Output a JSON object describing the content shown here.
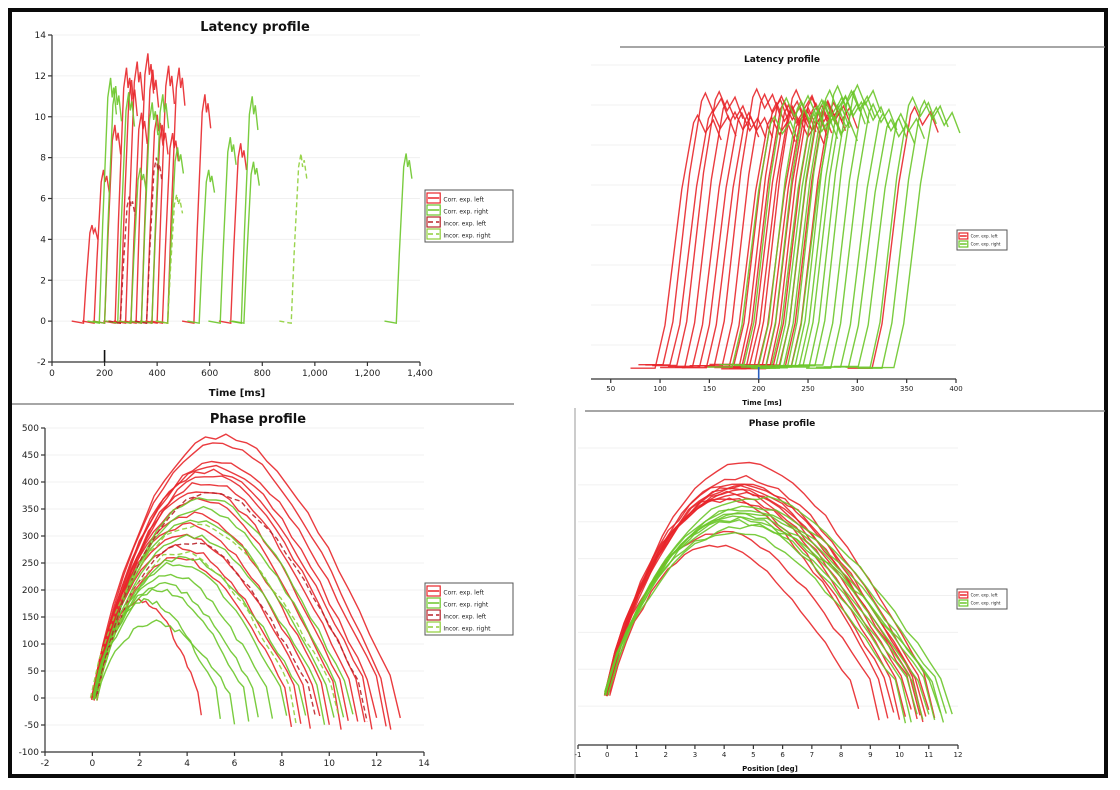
{
  "figure": {
    "colors": {
      "corr_left": "#e8262a",
      "corr_right": "#6cc62a",
      "incor_left": "#b8242a",
      "incor_right": "#8fcf3a",
      "frame": "#0a0a0a"
    }
  },
  "chart_data": [
    {
      "id": "latency_left",
      "type": "line",
      "title": "Latency profile",
      "xlabel": "Time [ms]",
      "ylabel": "",
      "xlim": [
        0,
        1400
      ],
      "ylim": [
        -2,
        14
      ],
      "xticks": [
        "0",
        "200",
        "400",
        "600",
        "800",
        "1,000",
        "1,200",
        "1,400"
      ],
      "xtick_values": [
        0,
        200,
        400,
        600,
        800,
        1000,
        1200,
        1400
      ],
      "yticks": [
        "-2",
        "0",
        "2",
        "4",
        "6",
        "8",
        "10",
        "12",
        "14"
      ],
      "ytick_values": [
        -2,
        0,
        2,
        4,
        6,
        8,
        10,
        12,
        14
      ],
      "marker_at_x": 200,
      "legend": [
        "Corr. exp. left",
        "Corr. exp. right",
        "Incor. exp. left",
        "Incor. exp. right"
      ],
      "legend_position": "right",
      "series": [
        {
          "name": "Corr. exp. left",
          "traces": [
            {
              "onset": 120,
              "peak": 4.7
            },
            {
              "onset": 160,
              "peak": 7.4
            },
            {
              "onset": 200,
              "peak": 9.6
            },
            {
              "onset": 240,
              "peak": 12.4
            },
            {
              "onset": 260,
              "peak": 11.8
            },
            {
              "onset": 280,
              "peak": 12.7
            },
            {
              "onset": 300,
              "peak": 10.2
            },
            {
              "onset": 320,
              "peak": 13.1
            },
            {
              "onset": 340,
              "peak": 12.3
            },
            {
              "onset": 360,
              "peak": 10.1
            },
            {
              "onset": 380,
              "peak": 9.6
            },
            {
              "onset": 400,
              "peak": 12.5
            },
            {
              "onset": 420,
              "peak": 9.2
            },
            {
              "onset": 440,
              "peak": 12.4
            },
            {
              "onset": 540,
              "peak": 11.1
            },
            {
              "onset": 680,
              "peak": 8.7
            }
          ]
        },
        {
          "name": "Corr. exp. right",
          "traces": [
            {
              "onset": 180,
              "peak": 11.9
            },
            {
              "onset": 200,
              "peak": 11.5
            },
            {
              "onset": 250,
              "peak": 11.2
            },
            {
              "onset": 300,
              "peak": 7.5
            },
            {
              "onset": 340,
              "peak": 10.7
            },
            {
              "onset": 380,
              "peak": 11.1
            },
            {
              "onset": 440,
              "peak": 8.5
            },
            {
              "onset": 560,
              "peak": 7.4
            },
            {
              "onset": 640,
              "peak": 9.0
            },
            {
              "onset": 720,
              "peak": 11.0
            },
            {
              "onset": 730,
              "peak": 7.8
            },
            {
              "onset": 1310,
              "peak": 8.2
            }
          ]
        },
        {
          "name": "Incor. exp. left",
          "traces": [
            {
              "onset": 260,
              "peak": 6.1
            },
            {
              "onset": 360,
              "peak": 8.0
            }
          ]
        },
        {
          "name": "Incor. exp. right",
          "traces": [
            {
              "onset": 910,
              "peak": 8.2
            },
            {
              "onset": 440,
              "peak": 6.2
            }
          ]
        }
      ]
    },
    {
      "id": "latency_right",
      "type": "line",
      "title": "Latency profile",
      "xlabel": "Time [ms]",
      "ylabel": "",
      "xlim": [
        30,
        400
      ],
      "ylim": [
        -1,
        13
      ],
      "xticks": [
        "50",
        "100",
        "150",
        "200",
        "250",
        "300",
        "350",
        "400"
      ],
      "xtick_values": [
        50,
        100,
        150,
        200,
        250,
        300,
        350,
        400
      ],
      "marker_at_x": 200,
      "legend": [
        "Corr. exp. left",
        "Corr. exp. right"
      ],
      "legend_position": "right",
      "series": [
        {
          "name": "Corr. exp. left",
          "onsets": [
            100,
            108,
            115,
            122,
            130,
            138,
            145,
            152,
            160,
            168,
            175,
            180,
            185,
            188,
            192,
            196,
            200,
            204,
            208,
            212,
            216,
            220,
            226,
            232,
            238,
            320
          ]
        },
        {
          "name": "Corr. exp. right",
          "onsets": [
            178,
            190,
            205,
            212,
            218,
            222,
            226,
            230,
            234,
            238,
            242,
            246,
            250,
            256,
            262,
            270,
            278,
            288,
            296,
            306,
            318,
            330,
            342
          ]
        }
      ]
    },
    {
      "id": "phase_left",
      "type": "line",
      "title": "Phase profile",
      "xlabel": "",
      "ylabel": "",
      "xlim": [
        -2,
        14
      ],
      "ylim": [
        -100,
        500
      ],
      "xticks": [
        "-2",
        "0",
        "2",
        "4",
        "6",
        "8",
        "10",
        "12",
        "14"
      ],
      "xtick_values": [
        -2,
        0,
        2,
        4,
        6,
        8,
        10,
        12,
        14
      ],
      "yticks": [
        "-100",
        "-50",
        "0",
        "50",
        "100",
        "150",
        "200",
        "250",
        "300",
        "350",
        "400",
        "450",
        "500"
      ],
      "ytick_values": [
        -100,
        -50,
        0,
        50,
        100,
        150,
        200,
        250,
        300,
        350,
        400,
        450,
        500
      ],
      "legend": [
        "Corr. exp. left",
        "Corr. exp. right",
        "Incor. exp. left",
        "Incor. exp. right"
      ],
      "legend_position": "right",
      "series": [
        {
          "name": "Corr. exp. left",
          "arcs": [
            {
              "end": 13.0,
              "peak": 485
            },
            {
              "end": 12.6,
              "peak": 470
            },
            {
              "end": 12.4,
              "peak": 440
            },
            {
              "end": 12.0,
              "peak": 430
            },
            {
              "end": 11.8,
              "peak": 420
            },
            {
              "end": 11.5,
              "peak": 410
            },
            {
              "end": 11.2,
              "peak": 400
            },
            {
              "end": 10.8,
              "peak": 385
            },
            {
              "end": 10.5,
              "peak": 370
            },
            {
              "end": 10.0,
              "peak": 340
            },
            {
              "end": 9.6,
              "peak": 320
            },
            {
              "end": 9.2,
              "peak": 300
            },
            {
              "end": 8.8,
              "peak": 280
            },
            {
              "end": 8.4,
              "peak": 260
            },
            {
              "end": 4.6,
              "peak": 180
            }
          ]
        },
        {
          "name": "Corr. exp. right",
          "arcs": [
            {
              "end": 11.0,
              "peak": 370
            },
            {
              "end": 10.6,
              "peak": 350
            },
            {
              "end": 10.2,
              "peak": 330
            },
            {
              "end": 9.8,
              "peak": 300
            },
            {
              "end": 9.0,
              "peak": 260
            },
            {
              "end": 8.2,
              "peak": 250
            },
            {
              "end": 7.6,
              "peak": 230
            },
            {
              "end": 7.0,
              "peak": 210
            },
            {
              "end": 6.6,
              "peak": 200
            },
            {
              "end": 6.0,
              "peak": 140
            },
            {
              "end": 5.4,
              "peak": 180
            }
          ]
        },
        {
          "name": "Incor. exp. left",
          "arcs": [
            {
              "end": 9.4,
              "peak": 290
            },
            {
              "end": 11.6,
              "peak": 380
            }
          ]
        },
        {
          "name": "Incor. exp. right",
          "arcs": [
            {
              "end": 10.4,
              "peak": 320
            },
            {
              "end": 8.6,
              "peak": 270
            }
          ]
        }
      ]
    },
    {
      "id": "phase_right",
      "type": "line",
      "title": "Phase profile",
      "xlabel": "Position [deg]",
      "ylabel": "",
      "xlim": [
        -1,
        12
      ],
      "ylim": [
        -100,
        500
      ],
      "xticks": [
        "-1",
        "0",
        "1",
        "2",
        "3",
        "4",
        "5",
        "6",
        "7",
        "8",
        "9",
        "10",
        "11",
        "12"
      ],
      "xtick_values": [
        -1,
        0,
        1,
        2,
        3,
        4,
        5,
        6,
        7,
        8,
        9,
        10,
        11,
        12
      ],
      "legend": [
        "Corr. exp. left",
        "Corr. exp. right"
      ],
      "legend_position": "right",
      "series": [
        {
          "name": "Corr. exp. left",
          "arcs": [
            {
              "end": 11.2,
              "peak": 470
            },
            {
              "end": 11.0,
              "peak": 440
            },
            {
              "end": 10.8,
              "peak": 430
            },
            {
              "end": 10.6,
              "peak": 420
            },
            {
              "end": 10.4,
              "peak": 415
            },
            {
              "end": 10.2,
              "peak": 410
            },
            {
              "end": 10.0,
              "peak": 405
            },
            {
              "end": 9.8,
              "peak": 400
            },
            {
              "end": 9.6,
              "peak": 395
            },
            {
              "end": 10.9,
              "peak": 425
            },
            {
              "end": 10.7,
              "peak": 412
            },
            {
              "end": 8.6,
              "peak": 300
            },
            {
              "end": 9.3,
              "peak": 330
            }
          ]
        },
        {
          "name": "Corr. exp. right",
          "arcs": [
            {
              "end": 11.8,
              "peak": 400
            },
            {
              "end": 11.6,
              "peak": 380
            },
            {
              "end": 11.4,
              "peak": 375
            },
            {
              "end": 11.2,
              "peak": 370
            },
            {
              "end": 11.0,
              "peak": 365
            },
            {
              "end": 10.8,
              "peak": 360
            },
            {
              "end": 10.6,
              "peak": 355
            },
            {
              "end": 10.4,
              "peak": 350
            },
            {
              "end": 11.5,
              "peak": 340
            },
            {
              "end": 10.2,
              "peak": 330
            }
          ]
        }
      ]
    }
  ]
}
